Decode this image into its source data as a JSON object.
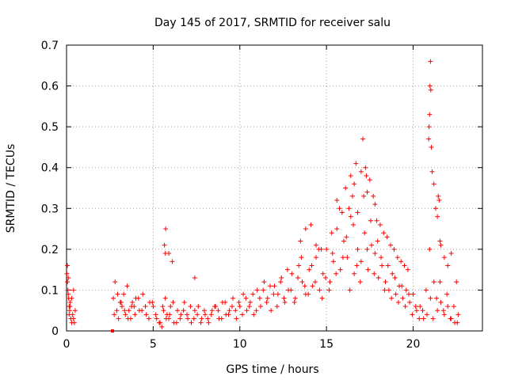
{
  "chart_data": {
    "type": "scatter",
    "title": "Day 145 of 2017, SRMTID for receiver salu",
    "xlabel": "GPS time / hours",
    "ylabel": "SRMTID / TECUs",
    "xlim": [
      0,
      24
    ],
    "ylim": [
      0,
      0.7
    ],
    "x_ticks": [
      0,
      5,
      10,
      15,
      20
    ],
    "x_tick_labels": [
      "0",
      "5",
      "10",
      "15",
      "20"
    ],
    "y_ticks": [
      0,
      0.1,
      0.2,
      0.3,
      0.4,
      0.5,
      0.6,
      0.7
    ],
    "y_tick_labels": [
      "0",
      "0.1",
      "0.2",
      "0.3",
      "0.4",
      "0.5",
      "0.6",
      "0.7"
    ],
    "grid": true,
    "marker": "+",
    "point_color": "#ff0000",
    "series": [
      {
        "name": "SRMTID",
        "x": [
          0.02,
          0.05,
          0.08,
          0.1,
          0.12,
          0.15,
          0.18,
          0.2,
          0.25,
          0.3,
          0.35,
          0.4,
          0.45,
          0.5,
          0.05,
          0.1,
          0.15,
          0.2,
          0.3,
          0.4,
          2.7,
          2.8,
          2.9,
          3.0,
          3.1,
          3.2,
          3.3,
          3.4,
          3.5,
          3.6,
          3.7,
          3.8,
          3.9,
          4.0,
          4.2,
          4.4,
          4.6,
          4.8,
          5.0,
          5.2,
          5.4,
          5.5,
          5.6,
          5.7,
          5.8,
          5.9,
          6.0,
          6.2,
          6.4,
          6.6,
          6.8,
          7.0,
          7.2,
          7.4,
          7.6,
          7.8,
          8.0,
          8.2,
          8.4,
          8.6,
          8.8,
          9.0,
          9.2,
          9.4,
          9.6,
          9.8,
          10.0,
          10.2,
          10.4,
          10.6,
          10.8,
          11.0,
          11.2,
          11.4,
          11.6,
          11.8,
          12.0,
          12.2,
          12.4,
          12.6,
          12.8,
          13.0,
          13.2,
          13.4,
          13.6,
          13.8,
          14.0,
          14.2,
          14.4,
          14.6,
          14.8,
          15.0,
          15.2,
          15.4,
          15.6,
          15.8,
          16.0,
          16.2,
          16.4,
          16.6,
          16.8,
          17.0,
          17.2,
          17.4,
          17.6,
          17.8,
          18.0,
          18.2,
          18.4,
          18.6,
          18.8,
          19.0,
          19.2,
          19.4,
          19.6,
          19.8,
          20.0,
          20.2,
          20.4,
          20.6,
          20.8,
          21.0,
          21.2,
          21.4,
          21.6,
          21.8,
          22.0,
          22.2,
          22.4,
          22.6,
          2.75,
          2.95,
          3.15,
          3.35,
          3.55,
          3.75,
          3.95,
          4.15,
          4.35,
          4.55,
          4.75,
          4.95,
          5.15,
          5.35,
          5.55,
          5.75,
          5.95,
          6.15,
          6.35,
          6.55,
          6.75,
          6.95,
          7.15,
          7.35,
          7.55,
          7.75,
          7.95,
          8.15,
          8.35,
          8.55,
          8.75,
          8.95,
          9.15,
          9.35,
          9.55,
          9.75,
          9.95,
          10.15,
          10.35,
          10.55,
          10.75,
          10.95,
          11.15,
          11.35,
          11.55,
          11.75,
          11.95,
          12.15,
          12.35,
          12.55,
          12.75,
          12.95,
          13.15,
          13.35,
          13.55,
          13.75,
          13.95,
          14.15,
          14.35,
          14.55,
          14.75,
          14.95,
          15.15,
          15.35,
          15.55,
          15.75,
          15.95,
          16.15,
          16.35,
          16.55,
          16.75,
          16.95,
          17.15,
          17.35,
          17.55,
          17.75,
          17.95,
          18.15,
          18.35,
          18.55,
          18.75,
          18.95,
          19.15,
          19.35,
          19.55,
          19.75,
          19.95,
          20.15,
          20.35,
          20.55,
          20.75,
          20.95,
          21.15,
          21.35,
          21.55,
          21.75,
          21.95,
          22.15,
          22.35,
          22.55,
          5.65,
          5.7,
          5.72,
          5.9,
          6.1,
          7.4,
          13.5,
          13.8,
          14.1,
          14.4,
          14.7,
          15.3,
          15.6,
          15.9,
          16.1,
          16.3,
          16.4,
          16.5,
          16.6,
          16.7,
          16.8,
          17.0,
          17.1,
          17.25,
          17.3,
          17.35,
          17.5,
          17.7,
          17.8,
          17.9,
          18.1,
          18.3,
          18.5,
          18.7,
          18.9,
          19.1,
          19.3,
          19.5,
          19.7,
          20.9,
          20.92,
          20.95,
          20.97,
          21.0,
          21.02,
          21.05,
          21.1,
          21.2,
          21.3,
          21.4,
          21.45,
          21.5,
          21.55,
          21.6,
          21.8,
          22.0,
          22.2,
          22.5
        ],
        "y": [
          0.14,
          0.16,
          0.1,
          0.13,
          0.08,
          0.06,
          0.05,
          0.07,
          0.03,
          0.02,
          0.04,
          0.03,
          0.02,
          0.05,
          0.12,
          0.09,
          0.04,
          0.06,
          0.08,
          0.1,
          0.08,
          0.12,
          0.05,
          0.03,
          0.07,
          0.06,
          0.09,
          0.04,
          0.11,
          0.05,
          0.03,
          0.07,
          0.06,
          0.08,
          0.05,
          0.09,
          0.04,
          0.07,
          0.06,
          0.03,
          0.02,
          0.01,
          0.05,
          0.08,
          0.04,
          0.03,
          0.06,
          0.02,
          0.05,
          0.04,
          0.07,
          0.03,
          0.02,
          0.05,
          0.06,
          0.03,
          0.04,
          0.02,
          0.05,
          0.06,
          0.03,
          0.07,
          0.04,
          0.05,
          0.08,
          0.03,
          0.06,
          0.09,
          0.05,
          0.07,
          0.04,
          0.1,
          0.06,
          0.12,
          0.08,
          0.05,
          0.11,
          0.09,
          0.13,
          0.07,
          0.1,
          0.14,
          0.08,
          0.16,
          0.12,
          0.09,
          0.15,
          0.11,
          0.18,
          0.1,
          0.14,
          0.2,
          0.12,
          0.17,
          0.25,
          0.15,
          0.22,
          0.18,
          0.28,
          0.14,
          0.2,
          0.17,
          0.24,
          0.15,
          0.21,
          0.19,
          0.13,
          0.16,
          0.12,
          0.1,
          0.14,
          0.09,
          0.11,
          0.08,
          0.1,
          0.07,
          0.09,
          0.05,
          0.06,
          0.03,
          0.04,
          0.08,
          0.12,
          0.05,
          0.07,
          0.04,
          0.06,
          0.03,
          0.02,
          0.04,
          0.04,
          0.09,
          0.07,
          0.05,
          0.03,
          0.06,
          0.04,
          0.08,
          0.05,
          0.06,
          0.03,
          0.07,
          0.04,
          0.02,
          0.06,
          0.03,
          0.04,
          0.07,
          0.02,
          0.03,
          0.05,
          0.04,
          0.06,
          0.03,
          0.04,
          0.02,
          0.05,
          0.03,
          0.04,
          0.06,
          0.05,
          0.03,
          0.07,
          0.04,
          0.06,
          0.05,
          0.07,
          0.04,
          0.08,
          0.06,
          0.09,
          0.05,
          0.08,
          0.1,
          0.07,
          0.11,
          0.09,
          0.06,
          0.12,
          0.08,
          0.15,
          0.1,
          0.07,
          0.13,
          0.18,
          0.11,
          0.09,
          0.16,
          0.12,
          0.2,
          0.08,
          0.13,
          0.1,
          0.19,
          0.14,
          0.3,
          0.18,
          0.23,
          0.1,
          0.26,
          0.16,
          0.12,
          0.33,
          0.2,
          0.27,
          0.14,
          0.22,
          0.18,
          0.1,
          0.16,
          0.08,
          0.13,
          0.07,
          0.11,
          0.06,
          0.09,
          0.04,
          0.06,
          0.03,
          0.05,
          0.1,
          0.2,
          0.03,
          0.08,
          0.12,
          0.05,
          0.09,
          0.03,
          0.06,
          0.02,
          0.21,
          0.19,
          0.25,
          0.19,
          0.17,
          0.13,
          0.22,
          0.25,
          0.26,
          0.21,
          0.2,
          0.24,
          0.32,
          0.29,
          0.35,
          0.3,
          0.38,
          0.33,
          0.36,
          0.41,
          0.29,
          0.39,
          0.47,
          0.4,
          0.38,
          0.34,
          0.37,
          0.33,
          0.31,
          0.27,
          0.26,
          0.24,
          0.23,
          0.21,
          0.2,
          0.18,
          0.17,
          0.16,
          0.15,
          0.47,
          0.5,
          0.53,
          0.6,
          0.66,
          0.59,
          0.45,
          0.39,
          0.36,
          0.3,
          0.28,
          0.33,
          0.32,
          0.22,
          0.21,
          0.18,
          0.16,
          0.19,
          0.12
        ]
      }
    ]
  }
}
